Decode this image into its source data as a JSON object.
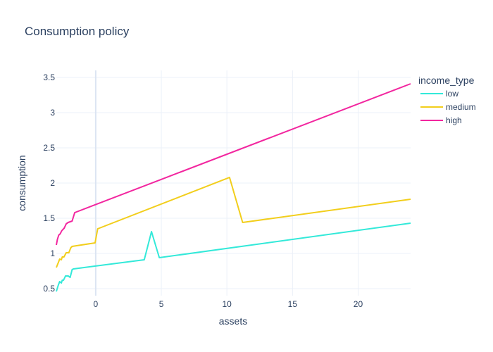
{
  "chart_data": {
    "type": "line",
    "title": "Consumption policy",
    "xlabel": "assets",
    "ylabel": "consumption",
    "xlim": [
      -3,
      24
    ],
    "ylim": [
      0.4,
      3.6
    ],
    "xticks": [
      0,
      5,
      10,
      15,
      20
    ],
    "yticks": [
      0.5,
      1,
      1.5,
      2,
      2.5,
      3,
      3.5
    ],
    "xtick_labels": [
      "0",
      "5",
      "10",
      "15",
      "20"
    ],
    "ytick_labels": [
      "0.5",
      "1",
      "1.5",
      "2",
      "2.5",
      "3",
      "3.5"
    ],
    "grid": true,
    "legend": {
      "title": "income_type",
      "placement": "right"
    },
    "colors": {
      "low": "#33e9d9",
      "medium": "#f2ce1c",
      "high": "#f2269f"
    },
    "series": [
      {
        "name": "low",
        "x": [
          -3.0,
          -2.85,
          -2.75,
          -2.62,
          -2.55,
          -2.45,
          -2.3,
          -2.1,
          -1.95,
          -1.8,
          -1.7,
          3.7,
          4.25,
          4.85,
          24.0
        ],
        "y": [
          0.46,
          0.55,
          0.6,
          0.58,
          0.62,
          0.62,
          0.68,
          0.68,
          0.66,
          0.77,
          0.78,
          0.91,
          1.31,
          0.94,
          1.43
        ]
      },
      {
        "name": "medium",
        "x": [
          -3.0,
          -2.85,
          -2.75,
          -2.62,
          -2.55,
          -2.42,
          -2.25,
          -2.05,
          -1.9,
          -1.8,
          -0.05,
          0.15,
          10.2,
          11.2,
          24.0
        ],
        "y": [
          0.8,
          0.87,
          0.92,
          0.91,
          0.95,
          0.95,
          1.01,
          1.01,
          1.08,
          1.1,
          1.15,
          1.35,
          2.08,
          1.44,
          1.77
        ]
      },
      {
        "name": "high",
        "x": [
          -3.0,
          -2.92,
          -2.82,
          -2.7,
          -2.6,
          -2.5,
          -2.4,
          -2.25,
          -2.1,
          -1.8,
          -1.6,
          24.0
        ],
        "y": [
          1.12,
          1.2,
          1.26,
          1.28,
          1.32,
          1.34,
          1.36,
          1.42,
          1.44,
          1.46,
          1.58,
          3.41
        ]
      }
    ]
  }
}
